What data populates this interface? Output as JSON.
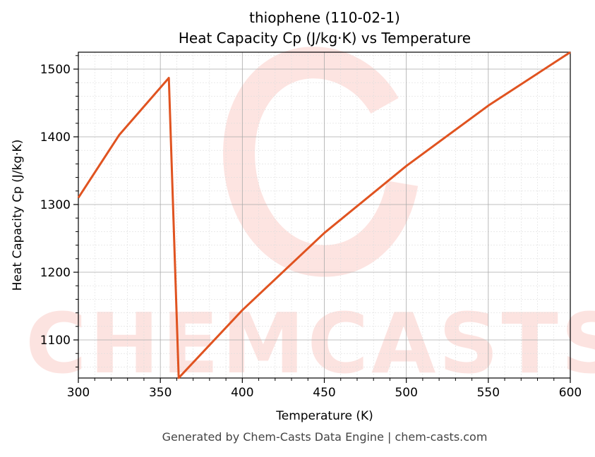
{
  "chart_data": {
    "type": "line",
    "title": "thiophene (110-02-1)",
    "subtitle": "Heat Capacity Cp (J/kg·K) vs Temperature",
    "xlabel": "Temperature (K)",
    "ylabel": "Heat Capacity Cp (J/kg·K)",
    "xlim": [
      300,
      600
    ],
    "ylim": [
      1043.75,
      1525
    ],
    "xticks": [
      300,
      350,
      400,
      450,
      500,
      550,
      600
    ],
    "yticks": [
      1100,
      1200,
      1300,
      1400,
      1500
    ],
    "grid": true,
    "line_color": "#e05320",
    "series": [
      {
        "name": "Cp",
        "x": [
          300,
          325,
          355.2,
          361.2,
          400,
          450,
          500,
          550,
          600
        ],
        "y": [
          1310,
          1403,
          1487,
          1044,
          1144,
          1258,
          1357,
          1446,
          1525
        ]
      }
    ],
    "watermark": "CHEMCASTS",
    "footer": "Generated by Chem-Casts Data Engine | chem-casts.com"
  }
}
